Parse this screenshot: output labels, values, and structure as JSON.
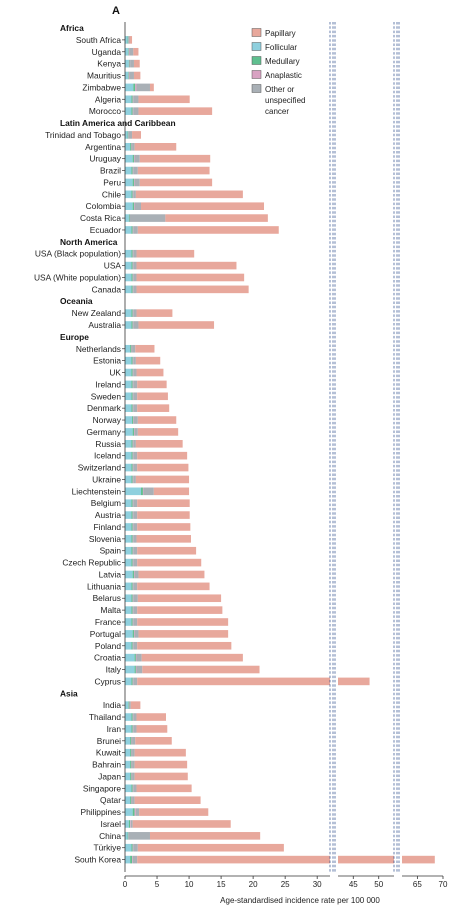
{
  "chart_data": {
    "type": "bar",
    "stacked": true,
    "orientation": "horizontal",
    "panel_label": "A",
    "title": "",
    "xlabel": "Age-standardised incidence rate per 100 000",
    "xlim": [
      0,
      70
    ],
    "axis_break": [
      [
        32,
        42
      ],
      [
        53,
        62
      ]
    ],
    "xticks": [
      "0",
      "5",
      "10",
      "15",
      "20",
      "25",
      "30",
      "45",
      "50",
      "65",
      "70"
    ],
    "legend_position": "top-right",
    "series": [
      {
        "name": "Papillary",
        "color": "#e8a89c"
      },
      {
        "name": "Follicular",
        "color": "#8fd0de"
      },
      {
        "name": "Medullary",
        "color": "#5fbf8f"
      },
      {
        "name": "Anaplastic",
        "color": "#d8a2c2"
      },
      {
        "name": "Other or unspecified cancer",
        "color": "#a9b0b6"
      }
    ],
    "rows": [
      {
        "kind": "region",
        "label": "Africa"
      },
      {
        "kind": "country",
        "label": "South Africa",
        "values": [
          0.4,
          0.4,
          0.1,
          0.0,
          0.2
        ]
      },
      {
        "kind": "country",
        "label": "Uganda",
        "values": [
          0.8,
          0.5,
          0.1,
          0.1,
          0.6
        ]
      },
      {
        "kind": "country",
        "label": "Kenya",
        "values": [
          0.9,
          0.6,
          0.1,
          0.1,
          0.6
        ]
      },
      {
        "kind": "country",
        "label": "Mauritius",
        "values": [
          1.0,
          0.5,
          0.1,
          0.1,
          0.7
        ]
      },
      {
        "kind": "country",
        "label": "Zimbabwe",
        "values": [
          0.6,
          1.3,
          0.3,
          0.2,
          2.1
        ]
      },
      {
        "kind": "country",
        "label": "Algeria",
        "values": [
          8.0,
          1.0,
          0.2,
          0.1,
          0.8
        ]
      },
      {
        "kind": "country",
        "label": "Morocco",
        "values": [
          11.5,
          1.0,
          0.2,
          0.1,
          0.8
        ]
      },
      {
        "kind": "region",
        "label": "Latin America and Caribbean"
      },
      {
        "kind": "country",
        "label": "Trinidad and Tobago",
        "values": [
          1.4,
          0.4,
          0.1,
          0.0,
          0.6
        ]
      },
      {
        "kind": "country",
        "label": "Argentina",
        "values": [
          6.5,
          0.8,
          0.2,
          0.1,
          0.4
        ]
      },
      {
        "kind": "country",
        "label": "Uruguay",
        "values": [
          11.0,
          1.2,
          0.2,
          0.1,
          0.8
        ]
      },
      {
        "kind": "country",
        "label": "Brazil",
        "values": [
          11.2,
          1.0,
          0.2,
          0.1,
          0.7
        ]
      },
      {
        "kind": "country",
        "label": "Peru",
        "values": [
          11.3,
          1.2,
          0.2,
          0.1,
          0.8
        ]
      },
      {
        "kind": "country",
        "label": "Chile",
        "values": [
          16.7,
          1.0,
          0.2,
          0.1,
          0.4
        ]
      },
      {
        "kind": "country",
        "label": "Colombia",
        "values": [
          19.2,
          1.2,
          0.2,
          0.1,
          1.0
        ]
      },
      {
        "kind": "country",
        "label": "Costa Rica",
        "values": [
          16.0,
          0.6,
          0.1,
          0.0,
          5.6
        ]
      },
      {
        "kind": "country",
        "label": "Ecuador",
        "values": [
          22.0,
          1.0,
          0.2,
          0.1,
          0.7
        ]
      },
      {
        "kind": "region",
        "label": "North America"
      },
      {
        "kind": "country",
        "label": "USA (Black population)",
        "values": [
          9.0,
          1.0,
          0.2,
          0.1,
          0.5
        ]
      },
      {
        "kind": "country",
        "label": "USA",
        "values": [
          15.6,
          1.0,
          0.2,
          0.1,
          0.5
        ]
      },
      {
        "kind": "country",
        "label": "USA (White population)",
        "values": [
          16.8,
          1.0,
          0.2,
          0.1,
          0.5
        ]
      },
      {
        "kind": "country",
        "label": "Canada",
        "values": [
          17.5,
          1.0,
          0.2,
          0.1,
          0.5
        ]
      },
      {
        "kind": "region",
        "label": "Oceania"
      },
      {
        "kind": "country",
        "label": "New Zealand",
        "values": [
          5.6,
          1.0,
          0.2,
          0.1,
          0.5
        ]
      },
      {
        "kind": "country",
        "label": "Australia",
        "values": [
          11.8,
          1.0,
          0.2,
          0.1,
          0.8
        ]
      },
      {
        "kind": "region",
        "label": "Europe"
      },
      {
        "kind": "country",
        "label": "Netherlands",
        "values": [
          3.0,
          0.8,
          0.2,
          0.1,
          0.5
        ]
      },
      {
        "kind": "country",
        "label": "Estonia",
        "values": [
          3.8,
          1.0,
          0.2,
          0.1,
          0.4
        ]
      },
      {
        "kind": "country",
        "label": "UK",
        "values": [
          4.2,
          1.0,
          0.2,
          0.1,
          0.5
        ]
      },
      {
        "kind": "country",
        "label": "Ireland",
        "values": [
          4.6,
          1.0,
          0.2,
          0.1,
          0.6
        ]
      },
      {
        "kind": "country",
        "label": "Sweden",
        "values": [
          4.8,
          1.0,
          0.2,
          0.1,
          0.6
        ]
      },
      {
        "kind": "country",
        "label": "Denmark",
        "values": [
          5.0,
          1.0,
          0.2,
          0.1,
          0.6
        ]
      },
      {
        "kind": "country",
        "label": "Norway",
        "values": [
          6.0,
          1.1,
          0.2,
          0.1,
          0.6
        ]
      },
      {
        "kind": "country",
        "label": "Germany",
        "values": [
          6.3,
          1.2,
          0.2,
          0.1,
          0.5
        ]
      },
      {
        "kind": "country",
        "label": "Russia",
        "values": [
          7.3,
          1.0,
          0.2,
          0.1,
          0.4
        ]
      },
      {
        "kind": "country",
        "label": "Iceland",
        "values": [
          7.8,
          1.0,
          0.2,
          0.1,
          0.6
        ]
      },
      {
        "kind": "country",
        "label": "Switzerland",
        "values": [
          8.0,
          1.0,
          0.2,
          0.1,
          0.6
        ]
      },
      {
        "kind": "country",
        "label": "Ukraine",
        "values": [
          8.3,
          1.0,
          0.2,
          0.1,
          0.4
        ]
      },
      {
        "kind": "country",
        "label": "Liechtenstein",
        "values": [
          5.5,
          2.5,
          0.3,
          0.1,
          1.6
        ]
      },
      {
        "kind": "country",
        "label": "Belgium",
        "values": [
          8.2,
          1.0,
          0.2,
          0.1,
          0.6
        ]
      },
      {
        "kind": "country",
        "label": "Austria",
        "values": [
          8.2,
          1.0,
          0.2,
          0.1,
          0.6
        ]
      },
      {
        "kind": "country",
        "label": "Finland",
        "values": [
          8.3,
          1.0,
          0.2,
          0.1,
          0.6
        ]
      },
      {
        "kind": "country",
        "label": "Slovenia",
        "values": [
          8.5,
          1.0,
          0.2,
          0.1,
          0.5
        ]
      },
      {
        "kind": "country",
        "label": "Spain",
        "values": [
          9.2,
          1.0,
          0.2,
          0.1,
          0.6
        ]
      },
      {
        "kind": "country",
        "label": "Czech Republic",
        "values": [
          10.0,
          1.0,
          0.2,
          0.1,
          0.6
        ]
      },
      {
        "kind": "country",
        "label": "Latvia",
        "values": [
          10.3,
          1.2,
          0.2,
          0.1,
          0.6
        ]
      },
      {
        "kind": "country",
        "label": "Lithuania",
        "values": [
          11.3,
          1.0,
          0.2,
          0.1,
          0.6
        ]
      },
      {
        "kind": "country",
        "label": "Belarus",
        "values": [
          13.0,
          1.0,
          0.2,
          0.1,
          0.7
        ]
      },
      {
        "kind": "country",
        "label": "Malta",
        "values": [
          13.3,
          1.0,
          0.2,
          0.1,
          0.6
        ]
      },
      {
        "kind": "country",
        "label": "France",
        "values": [
          14.2,
          1.0,
          0.2,
          0.1,
          0.6
        ]
      },
      {
        "kind": "country",
        "label": "Portugal",
        "values": [
          14.0,
          1.2,
          0.2,
          0.1,
          0.6
        ]
      },
      {
        "kind": "country",
        "label": "Poland",
        "values": [
          14.7,
          1.0,
          0.2,
          0.1,
          0.6
        ]
      },
      {
        "kind": "country",
        "label": "Croatia",
        "values": [
          15.8,
          1.5,
          0.2,
          0.1,
          0.8
        ]
      },
      {
        "kind": "country",
        "label": "Italy",
        "values": [
          18.3,
          1.5,
          0.2,
          0.1,
          0.9
        ]
      },
      {
        "kind": "country",
        "label": "Cyprus",
        "values": [
          46.3,
          1.0,
          0.2,
          0.1,
          0.6
        ]
      },
      {
        "kind": "region",
        "label": "Asia"
      },
      {
        "kind": "country",
        "label": "India",
        "values": [
          1.5,
          0.5,
          0.1,
          0.0,
          0.3
        ]
      },
      {
        "kind": "country",
        "label": "Thailand",
        "values": [
          4.6,
          1.0,
          0.2,
          0.1,
          0.5
        ]
      },
      {
        "kind": "country",
        "label": "Iran",
        "values": [
          4.8,
          1.0,
          0.2,
          0.1,
          0.5
        ]
      },
      {
        "kind": "country",
        "label": "Brunei",
        "values": [
          5.7,
          0.8,
          0.2,
          0.1,
          0.5
        ]
      },
      {
        "kind": "country",
        "label": "Kuwait",
        "values": [
          8.0,
          0.8,
          0.2,
          0.1,
          0.4
        ]
      },
      {
        "kind": "country",
        "label": "Bahrain",
        "values": [
          8.2,
          0.8,
          0.2,
          0.1,
          0.4
        ]
      },
      {
        "kind": "country",
        "label": "Japan",
        "values": [
          8.3,
          0.8,
          0.2,
          0.1,
          0.4
        ]
      },
      {
        "kind": "country",
        "label": "Singapore",
        "values": [
          8.6,
          1.0,
          0.2,
          0.1,
          0.5
        ]
      },
      {
        "kind": "country",
        "label": "Qatar",
        "values": [
          10.3,
          0.8,
          0.2,
          0.1,
          0.4
        ]
      },
      {
        "kind": "country",
        "label": "Philippines",
        "values": [
          10.8,
          1.2,
          0.3,
          0.2,
          0.5
        ]
      },
      {
        "kind": "country",
        "label": "Israel",
        "values": [
          15.3,
          0.6,
          0.2,
          0.1,
          0.3
        ]
      },
      {
        "kind": "country",
        "label": "China",
        "values": [
          17.2,
          0.4,
          0.1,
          0.0,
          3.4
        ]
      },
      {
        "kind": "country",
        "label": "Türkiye",
        "values": [
          22.8,
          1.0,
          0.2,
          0.1,
          0.7
        ]
      },
      {
        "kind": "country",
        "label": "South Korea",
        "values": [
          66.5,
          0.8,
          0.3,
          0.1,
          0.7
        ]
      }
    ]
  }
}
